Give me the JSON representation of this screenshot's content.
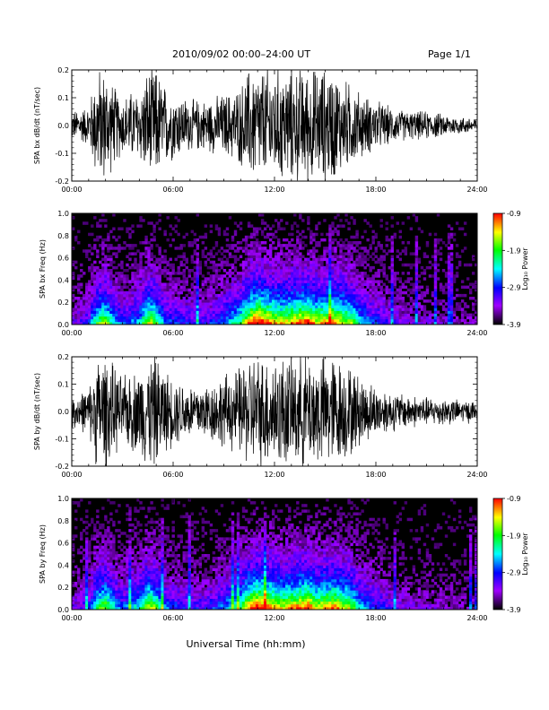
{
  "header": {
    "title": "2010/09/02   00:00–24:00 UT",
    "page": "Page 1/1"
  },
  "x_axis_label": "Universal Time (hh:mm)",
  "colorbar": {
    "label": "Log₁₀ Power",
    "ticks": [
      "-0.9",
      "-1.9",
      "-2.9",
      "-3.9"
    ],
    "colors": [
      "#ff0000",
      "#ffff00",
      "#00ff00",
      "#00ffff",
      "#0000ff",
      "#a000ff",
      "#000000"
    ]
  },
  "chart_data": [
    {
      "type": "line",
      "id": "bx-ts",
      "ylabel": "SPA bx dB/dt (nT/sec)",
      "xlim": [
        0,
        24
      ],
      "ylim": [
        -0.2,
        0.2
      ],
      "x_ticks": [
        "00:00",
        "06:00",
        "12:00",
        "18:00",
        "24:00"
      ],
      "y_ticks": [
        "0.2",
        "0.1",
        "0.0",
        "-0.1",
        "-0.2"
      ],
      "x_hours": [
        0,
        1,
        1.5,
        2,
        2.5,
        3,
        3.5,
        4,
        4.5,
        5,
        5.5,
        6,
        7,
        8,
        9,
        9.5,
        10,
        10.5,
        11,
        11.5,
        12,
        12.5,
        13,
        13.5,
        14,
        14.5,
        15,
        15.5,
        16,
        16.5,
        17,
        17.5,
        18,
        19,
        20,
        21,
        22,
        23,
        24
      ],
      "envelope_amplitude": [
        0.05,
        0.07,
        0.2,
        0.2,
        0.14,
        0.1,
        0.12,
        0.12,
        0.2,
        0.2,
        0.14,
        0.12,
        0.09,
        0.09,
        0.11,
        0.12,
        0.14,
        0.2,
        0.2,
        0.2,
        0.2,
        0.2,
        0.2,
        0.2,
        0.2,
        0.2,
        0.2,
        0.2,
        0.16,
        0.15,
        0.12,
        0.1,
        0.09,
        0.06,
        0.05,
        0.05,
        0.04,
        0.03,
        0.03
      ]
    },
    {
      "type": "heatmap",
      "id": "bx-spec",
      "ylabel": "SPA bx Freq (Hz)",
      "xlim": [
        0,
        24
      ],
      "ylim": [
        0.0,
        1.0
      ],
      "zlim": [
        -3.9,
        -0.9
      ],
      "x_ticks": [
        "00:00",
        "06:00",
        "12:00",
        "18:00",
        "24:00"
      ],
      "y_ticks": [
        "1.0",
        "0.8",
        "0.6",
        "0.4",
        "0.2",
        "0.0"
      ],
      "x_hours": [
        0,
        1,
        1.5,
        2,
        2.5,
        3,
        3.5,
        4,
        4.5,
        5,
        5.5,
        6,
        7,
        8,
        9,
        9.5,
        10,
        10.5,
        11,
        11.5,
        12,
        12.5,
        13,
        13.5,
        14,
        14.5,
        15,
        15.5,
        16,
        16.5,
        17,
        17.5,
        18,
        19,
        20,
        21,
        22,
        23,
        24
      ],
      "activity": [
        0.15,
        0.25,
        0.55,
        0.65,
        0.4,
        0.3,
        0.35,
        0.4,
        0.7,
        0.6,
        0.35,
        0.3,
        0.25,
        0.25,
        0.35,
        0.45,
        0.55,
        0.8,
        0.9,
        0.85,
        0.75,
        0.7,
        0.75,
        0.8,
        0.85,
        0.7,
        0.75,
        0.8,
        0.7,
        0.65,
        0.45,
        0.35,
        0.3,
        0.2,
        0.15,
        0.15,
        0.12,
        0.1,
        0.1
      ]
    },
    {
      "type": "line",
      "id": "by-ts",
      "ylabel": "SPA by dB/dt (nT/sec)",
      "xlim": [
        0,
        24
      ],
      "ylim": [
        -0.2,
        0.2
      ],
      "x_ticks": [
        "00:00",
        "06:00",
        "12:00",
        "18:00",
        "24:00"
      ],
      "y_ticks": [
        "0.2",
        "0.1",
        "0.0",
        "-0.1",
        "-0.2"
      ],
      "x_hours": [
        0,
        1,
        1.5,
        2,
        2.5,
        3,
        3.5,
        4,
        4.5,
        5,
        5.5,
        6,
        7,
        8,
        9,
        9.5,
        10,
        10.5,
        11,
        11.5,
        12,
        12.5,
        13,
        13.5,
        14,
        14.5,
        15,
        15.5,
        16,
        16.5,
        17,
        17.5,
        18,
        19,
        20,
        21,
        22,
        23,
        24
      ],
      "envelope_amplitude": [
        0.06,
        0.08,
        0.2,
        0.2,
        0.16,
        0.12,
        0.14,
        0.15,
        0.2,
        0.2,
        0.15,
        0.12,
        0.1,
        0.1,
        0.13,
        0.14,
        0.16,
        0.2,
        0.2,
        0.2,
        0.2,
        0.2,
        0.2,
        0.2,
        0.2,
        0.2,
        0.2,
        0.2,
        0.18,
        0.16,
        0.13,
        0.11,
        0.09,
        0.07,
        0.06,
        0.05,
        0.05,
        0.04,
        0.04
      ]
    },
    {
      "type": "heatmap",
      "id": "by-spec",
      "ylabel": "SPA by Freq (Hz)",
      "xlim": [
        0,
        24
      ],
      "ylim": [
        0.0,
        1.0
      ],
      "zlim": [
        -3.9,
        -0.9
      ],
      "x_ticks": [
        "00:00",
        "06:00",
        "12:00",
        "18:00",
        "24:00"
      ],
      "y_ticks": [
        "1.0",
        "0.8",
        "0.6",
        "0.4",
        "0.2",
        "0.0"
      ],
      "x_hours": [
        0,
        1,
        1.5,
        2,
        2.5,
        3,
        3.5,
        4,
        4.5,
        5,
        5.5,
        6,
        7,
        8,
        9,
        9.5,
        10,
        10.5,
        11,
        11.5,
        12,
        12.5,
        13,
        13.5,
        14,
        14.5,
        15,
        15.5,
        16,
        16.5,
        17,
        17.5,
        18,
        19,
        20,
        21,
        22,
        23,
        24
      ],
      "activity": [
        0.15,
        0.25,
        0.55,
        0.65,
        0.45,
        0.3,
        0.4,
        0.45,
        0.7,
        0.6,
        0.35,
        0.3,
        0.25,
        0.25,
        0.35,
        0.45,
        0.55,
        0.8,
        0.9,
        0.85,
        0.75,
        0.7,
        0.75,
        0.8,
        0.85,
        0.7,
        0.75,
        0.8,
        0.7,
        0.65,
        0.45,
        0.35,
        0.3,
        0.2,
        0.15,
        0.15,
        0.12,
        0.1,
        0.1
      ]
    }
  ]
}
